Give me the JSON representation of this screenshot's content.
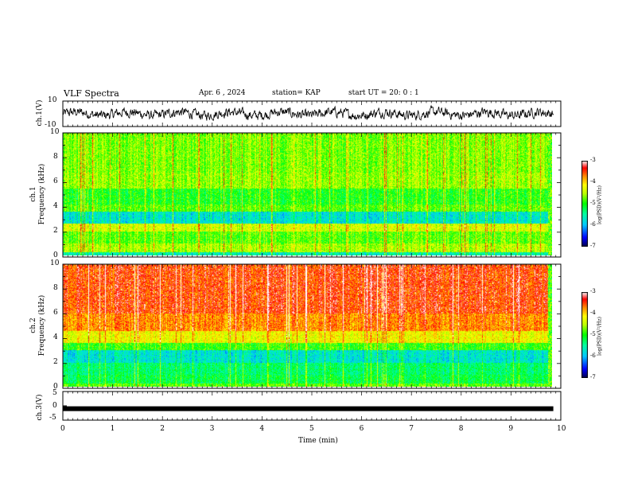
{
  "header": {
    "title": "VLF Spectra",
    "date": "Apr. 6 , 2024",
    "station": "station= KAP",
    "start": "start UT = 20: 0 : 1"
  },
  "panels": {
    "ch1_wave": {
      "label": "ch.1(V)",
      "ticks": [
        "10",
        "-10"
      ]
    },
    "ch1_spec": {
      "label_line1": "ch.1",
      "label_line2": "Frequency (kHz)",
      "ticks": [
        "10",
        "8",
        "6",
        "4",
        "2",
        "0"
      ]
    },
    "ch2_spec": {
      "label_line1": "ch.2",
      "label_line2": "Frequency (kHz)",
      "ticks": [
        "10",
        "8",
        "6",
        "4",
        "2",
        "0"
      ]
    },
    "ch3_wave": {
      "label": "ch.3(V)",
      "ticks": [
        "5",
        "0",
        "-5"
      ]
    }
  },
  "colorbar": {
    "ticks": [
      "-3",
      "-4",
      "-5",
      "-6",
      "-7"
    ],
    "label": "log(PSD)(V²/Hz)"
  },
  "xaxis": {
    "ticks": [
      "0",
      "1",
      "2",
      "3",
      "4",
      "5",
      "6",
      "7",
      "8",
      "9",
      "10"
    ],
    "label": "Time (min)"
  },
  "chart_data": [
    {
      "type": "line",
      "series": [
        {
          "name": "ch.1(V)",
          "description_values": "noisy waveform fluctuating roughly between -6 and 6 V"
        }
      ],
      "xlim": [
        0,
        10
      ],
      "ylim": [
        -10,
        10
      ],
      "x_data_end": 9.85
    },
    {
      "type": "heatmap",
      "xlim": [
        0,
        10
      ],
      "ylim": [
        0,
        10
      ],
      "zlim": [
        -7,
        -3
      ],
      "colorscale": [
        "#00004a",
        "#0000ff",
        "#00c0ff",
        "#00ffa0",
        "#00ff00",
        "#c8ff00",
        "#ffff00",
        "#ff8000",
        "#ff0000",
        "#ffffff"
      ]
    },
    {
      "type": "heatmap",
      "xlim": [
        0,
        10
      ],
      "ylim": [
        0,
        10
      ],
      "zlim": [
        -7,
        -3
      ]
    },
    {
      "type": "line",
      "series": [
        {
          "name": "ch.3(V)",
          "values_constant": -1
        }
      ],
      "xlim": [
        0,
        10
      ],
      "ylim": [
        -5,
        5
      ],
      "x_data_end": 9.85
    }
  ],
  "colors": {
    "frame": "#000000",
    "wave": "#000000"
  }
}
